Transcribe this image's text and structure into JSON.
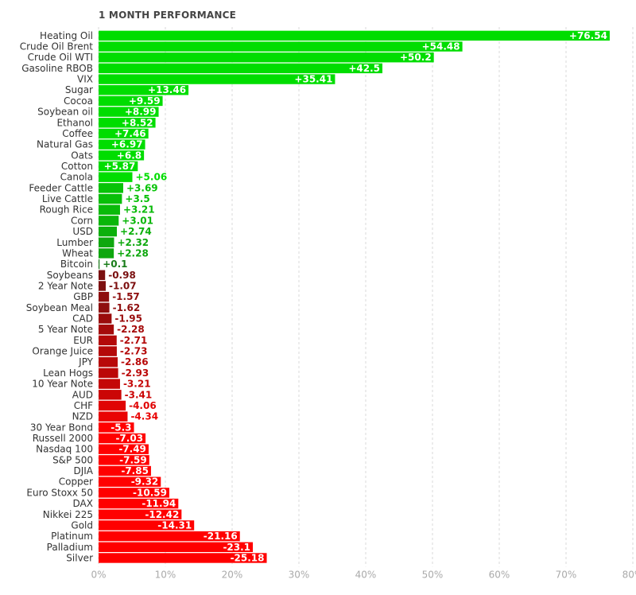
{
  "chart_data": {
    "type": "bar",
    "orientation": "horizontal",
    "title": "1 MONTH PERFORMANCE",
    "xlabel": "",
    "ylabel": "",
    "xlim": [
      0,
      80
    ],
    "x_ticks": [
      "0%",
      "10%",
      "20%",
      "30%",
      "40%",
      "50%",
      "60%",
      "70%",
      "80%"
    ],
    "grid": "vertical dashed",
    "categories": [
      "Heating Oil",
      "Crude Oil Brent",
      "Crude Oil WTI",
      "Gasoline RBOB",
      "VIX",
      "Sugar",
      "Cocoa",
      "Soybean oil",
      "Ethanol",
      "Coffee",
      "Natural Gas",
      "Oats",
      "Cotton",
      "Canola",
      "Feeder Cattle",
      "Live Cattle",
      "Rough Rice",
      "Corn",
      "USD",
      "Lumber",
      "Wheat",
      "Bitcoin",
      "Soybeans",
      "2 Year Note",
      "GBP",
      "Soybean Meal",
      "CAD",
      "5 Year Note",
      "EUR",
      "Orange Juice",
      "JPY",
      "Lean Hogs",
      "10 Year Note",
      "AUD",
      "CHF",
      "NZD",
      "30 Year Bond",
      "Russell 2000",
      "Nasdaq 100",
      "S&P 500",
      "DJIA",
      "Copper",
      "Euro Stoxx 50",
      "DAX",
      "Nikkei 225",
      "Gold",
      "Platinum",
      "Palladium",
      "Silver"
    ],
    "values": [
      76.54,
      54.48,
      50.2,
      42.5,
      35.41,
      13.46,
      9.59,
      8.99,
      8.52,
      7.46,
      6.97,
      6.8,
      5.87,
      5.06,
      3.69,
      3.5,
      3.21,
      3.01,
      2.74,
      2.32,
      2.28,
      0.1,
      -0.98,
      -1.07,
      -1.57,
      -1.62,
      -1.95,
      -2.28,
      -2.71,
      -2.73,
      -2.86,
      -2.93,
      -3.21,
      -3.41,
      -4.06,
      -4.34,
      -5.3,
      -7.03,
      -7.49,
      -7.59,
      -7.85,
      -9.32,
      -10.59,
      -11.94,
      -12.42,
      -14.31,
      -21.16,
      -23.1,
      -25.18
    ],
    "data_labels": [
      "+76.54",
      "+54.48",
      "+50.2",
      "+42.5",
      "+35.41",
      "+13.46",
      "+9.59",
      "+8.99",
      "+8.52",
      "+7.46",
      "+6.97",
      "+6.8",
      "+5.87",
      "+5.06",
      "+3.69",
      "+3.5",
      "+3.21",
      "+3.01",
      "+2.74",
      "+2.32",
      "+2.28",
      "+0.1",
      "-0.98",
      "-1.07",
      "-1.57",
      "-1.62",
      "-1.95",
      "-2.28",
      "-2.71",
      "-2.73",
      "-2.86",
      "-2.93",
      "-3.21",
      "-3.41",
      "-4.06",
      "-4.34",
      "-5.3",
      "-7.03",
      "-7.49",
      "-7.59",
      "-7.85",
      "-9.32",
      "-10.59",
      "-11.94",
      "-12.42",
      "-14.31",
      "-21.16",
      "-23.1",
      "-25.18"
    ],
    "colors": {
      "positive_bright": "#00dd00",
      "positive_dark": "#1a7a1a",
      "negative_dark": "#5a1414",
      "negative_bright": "#ff0000",
      "grid": "#d8d8d8",
      "tick_label": "#aaaaaa",
      "category_label": "#333333"
    }
  }
}
